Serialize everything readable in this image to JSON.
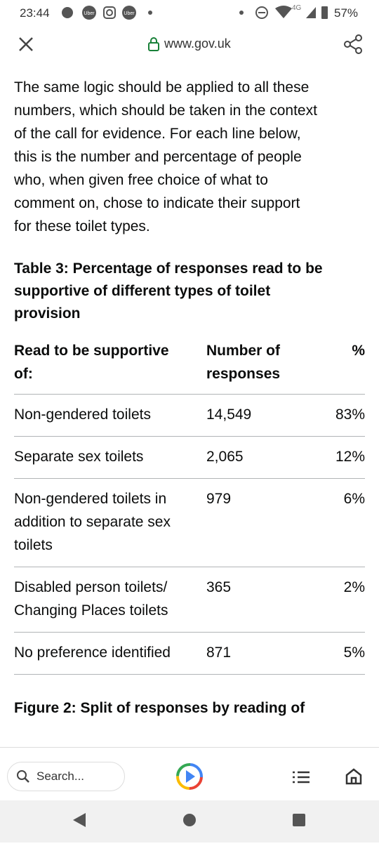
{
  "status_bar": {
    "time": "23:44",
    "icons": [
      "Uber",
      "Uber"
    ],
    "network": "4G",
    "battery": "57%"
  },
  "toolbar": {
    "url": "www.gov.uk"
  },
  "content": {
    "paragraph_lines": [
      "The same logic should be applied to all these",
      "numbers, which should be taken in the context",
      "of the call for evidence. For each line below,",
      "this is the number and percentage of people",
      "who, when given free choice of what to",
      "comment on, chose to indicate their support",
      "for these toilet types."
    ],
    "table": {
      "caption_lines": [
        "Table 3: Percentage of responses read to be",
        "supportive of different types of toilet",
        "provision"
      ],
      "headers": [
        "Read to be supportive of:",
        "Number of responses",
        "%"
      ],
      "rows": [
        [
          "Non-gendered toilets",
          "14,549",
          "83%"
        ],
        [
          "Separate sex toilets",
          "2,065",
          "12%"
        ],
        [
          "Non-gendered toilets in addition to separate sex toilets",
          "979",
          "6%"
        ],
        [
          "Disabled person toilets/ Changing Places toilets",
          "365",
          "2%"
        ],
        [
          "No preference identified",
          "871",
          "5%"
        ]
      ]
    },
    "next_heading": "Figure 2: Split of responses by reading of"
  },
  "bottom_bar": {
    "search_placeholder": "Search..."
  }
}
